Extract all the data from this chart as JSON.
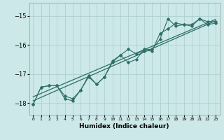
{
  "xlabel": "Humidex (Indice chaleur)",
  "xlim": [
    -0.5,
    23.5
  ],
  "ylim": [
    -18.4,
    -14.55
  ],
  "yticks": [
    -18,
    -17,
    -16,
    -15
  ],
  "xticks": [
    0,
    1,
    2,
    3,
    4,
    5,
    6,
    7,
    8,
    9,
    10,
    11,
    12,
    13,
    14,
    15,
    16,
    17,
    18,
    19,
    20,
    21,
    22,
    23
  ],
  "bg_color": "#cce8e8",
  "line_color": "#2e6e68",
  "grid_color": "#aacccc",
  "series": {
    "line1": {
      "x": [
        0,
        1,
        2,
        3,
        4,
        5,
        6,
        7,
        8,
        9,
        10,
        11,
        12,
        13,
        14,
        15,
        16,
        17,
        18,
        19,
        20,
        21,
        22,
        23
      ],
      "y": [
        -18.05,
        -17.45,
        -17.4,
        -17.4,
        -17.75,
        -17.85,
        -17.55,
        -17.05,
        -17.35,
        -17.1,
        -16.6,
        -16.35,
        -16.6,
        -16.5,
        -16.15,
        -16.15,
        -15.8,
        -15.1,
        -15.35,
        -15.3,
        -15.35,
        -15.1,
        -15.3,
        -15.25
      ]
    },
    "line2": {
      "x": [
        0,
        1,
        2,
        3,
        4,
        5,
        6,
        7,
        8,
        9,
        10,
        11,
        12,
        13,
        14,
        15,
        16,
        17,
        18,
        19,
        20,
        21,
        22,
        23
      ],
      "y": [
        -18.05,
        -17.45,
        -17.4,
        -17.4,
        -17.85,
        -17.92,
        -17.55,
        -17.1,
        -17.35,
        -17.1,
        -16.55,
        -16.35,
        -16.15,
        -16.3,
        -16.2,
        -16.2,
        -15.6,
        -15.45,
        -15.25,
        -15.3,
        -15.3,
        -15.1,
        -15.2,
        -15.2
      ]
    },
    "regression1": {
      "x": [
        0,
        23
      ],
      "y": [
        -17.92,
        -15.17
      ]
    },
    "regression2": {
      "x": [
        0,
        23
      ],
      "y": [
        -17.78,
        -15.12
      ]
    }
  }
}
